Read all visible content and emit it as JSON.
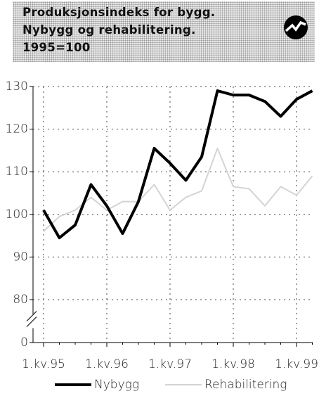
{
  "chart_data": {
    "type": "line",
    "title": [
      "Produksjonsindeks for bygg.",
      "Nybygg og rehabilitering.",
      "1995=100"
    ],
    "categories": [
      "1.kv.95",
      null,
      null,
      null,
      "1.kv.96",
      null,
      null,
      null,
      "1.kv.97",
      null,
      null,
      null,
      "1.kv.98",
      null,
      null,
      null,
      "1.kv.99",
      null
    ],
    "series": [
      {
        "name": "Nybygg",
        "color": "#000000",
        "values": [
          101,
          94.5,
          97.5,
          107,
          102,
          95.5,
          103,
          115.5,
          112,
          108,
          113.5,
          129,
          128,
          128,
          126.5,
          123,
          127,
          129
        ]
      },
      {
        "name": "Rehabilitering",
        "color": "#d4d4d4",
        "values": [
          96,
          99.5,
          101,
          104,
          101,
          103,
          103,
          107,
          101,
          104,
          105.5,
          115.5,
          106.5,
          106,
          102,
          106.5,
          104.5,
          109
        ]
      }
    ],
    "ylim": [
      0,
      130
    ],
    "axis_break": [
      0,
      80
    ],
    "yticks": [
      0,
      80,
      90,
      100,
      110,
      120,
      130
    ],
    "grid": true
  }
}
